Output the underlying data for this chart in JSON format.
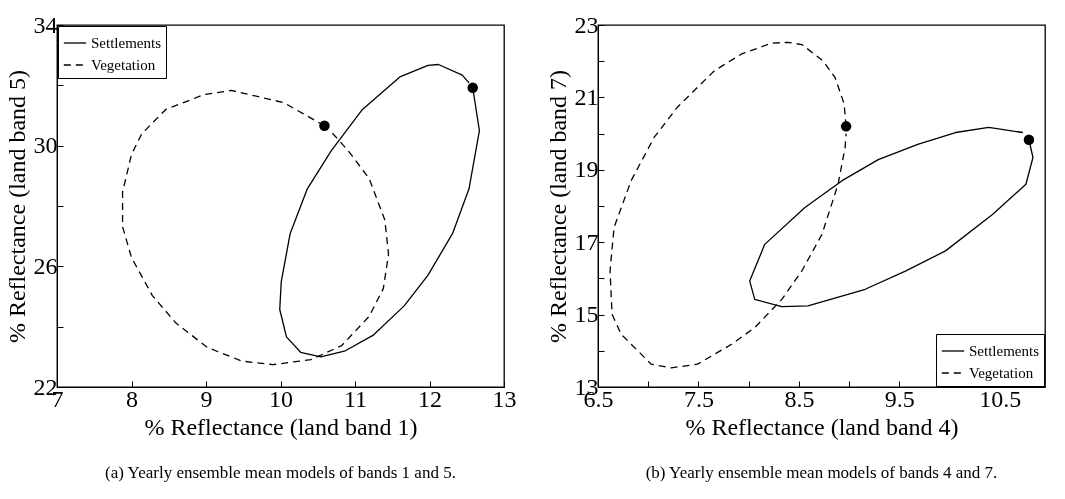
{
  "chart_data": [
    {
      "type": "line",
      "xlabel": "% Reflectance (land band 1)",
      "ylabel": "% Reflectance (land band 5)",
      "xlim": [
        7,
        13
      ],
      "ylim": [
        22,
        34
      ],
      "xticks": [
        7,
        8,
        9,
        10,
        11,
        12,
        13
      ],
      "yticks": [
        22,
        {
          "value": 24,
          "label": null
        },
        26,
        {
          "value": 28,
          "label": null
        },
        30,
        {
          "value": 32,
          "label": null
        },
        34
      ],
      "legend": "top left",
      "annotations": [
        "(a) Yearly ensemble mean models of bands 1 and 5."
      ],
      "series": [
        {
          "name": "Settlements",
          "color": "#000000",
          "line_style": "solid",
          "x": [
            12.58,
            12.67,
            12.53,
            12.31,
            11.98,
            11.66,
            11.24,
            10.87,
            10.54,
            10.27,
            10.08,
            9.99,
            10.01,
            10.13,
            10.36,
            10.68,
            11.1,
            11.61,
            11.98,
            12.12,
            12.44,
            12.53
          ],
          "values": [
            31.92,
            30.5,
            28.57,
            27.09,
            25.71,
            24.69,
            23.71,
            23.2,
            23.0,
            23.15,
            23.66,
            24.57,
            25.49,
            27.09,
            28.57,
            29.83,
            31.2,
            32.29,
            32.66,
            32.69,
            32.34,
            32.08
          ]
        },
        {
          "name": "Vegetation",
          "color": "#000000",
          "line_style": "dashed",
          "x": [
            10.59,
            10.04,
            9.34,
            8.97,
            8.46,
            8.14,
            8.0,
            7.88,
            7.88,
            8.0,
            8.28,
            8.6,
            9.02,
            9.48,
            9.9,
            10.41,
            10.82,
            11.19,
            11.38,
            11.45,
            11.4,
            11.19,
            10.91,
            10.68
          ],
          "values": [
            30.66,
            31.43,
            31.83,
            31.69,
            31.2,
            30.4,
            29.71,
            28.46,
            27.31,
            26.29,
            25.03,
            24.11,
            23.31,
            22.86,
            22.74,
            22.91,
            23.37,
            24.34,
            25.26,
            26.4,
            27.54,
            28.91,
            29.83,
            30.46
          ]
        },
        {
          "type": "scatter",
          "marker": "circle",
          "color": "#000000",
          "x": [
            12.58,
            10.59
          ],
          "values": [
            31.92,
            30.66
          ]
        }
      ]
    },
    {
      "type": "line",
      "xlabel": "% Reflectance (land band 4)",
      "ylabel": "% Reflectance (land band 7)",
      "xlim": [
        6.5,
        10.95
      ],
      "ylim": [
        13,
        23
      ],
      "xticks": [
        6.5,
        {
          "value": 7,
          "label": null
        },
        7.5,
        {
          "value": 8,
          "label": null
        },
        8.5,
        {
          "value": 9,
          "label": null
        },
        9.5,
        {
          "value": 10,
          "label": null
        },
        10.5
      ],
      "yticks": [
        13,
        {
          "value": 14,
          "label": null
        },
        15,
        {
          "value": 16,
          "label": null
        },
        17,
        {
          "value": 18,
          "label": null
        },
        19,
        {
          "value": 20,
          "label": null
        },
        21,
        {
          "value": 22,
          "label": null
        },
        23
      ],
      "legend": "bottom right",
      "annotations": [
        "(b) Yearly ensemble mean models of bands 4 and 7."
      ],
      "series": [
        {
          "name": "Settlements",
          "color": "#000000",
          "line_style": "solid",
          "x": [
            10.79,
            10.83,
            10.76,
            10.43,
            9.96,
            9.56,
            9.16,
            8.59,
            8.33,
            8.06,
            8.01,
            8.16,
            8.56,
            8.93,
            9.29,
            9.69,
            10.06,
            10.39,
            10.73
          ],
          "values": [
            19.83,
            19.34,
            18.6,
            17.77,
            16.76,
            16.2,
            15.7,
            15.24,
            15.22,
            15.42,
            15.93,
            16.94,
            17.96,
            18.7,
            19.28,
            19.71,
            20.03,
            20.17,
            20.03
          ]
        },
        {
          "name": "Vegetation",
          "color": "#000000",
          "line_style": "dashed",
          "x": [
            8.97,
            8.95,
            8.86,
            8.74,
            8.53,
            8.39,
            8.23,
            7.93,
            7.66,
            7.29,
            7.06,
            6.83,
            6.66,
            6.62,
            6.64,
            6.73,
            7.03,
            7.23,
            7.49,
            7.83,
            8.06,
            8.33,
            8.53,
            8.73,
            8.89,
            8.96,
            8.97
          ],
          "values": [
            20.2,
            20.82,
            21.55,
            22.01,
            22.46,
            22.52,
            22.5,
            22.2,
            21.74,
            20.73,
            19.9,
            18.7,
            17.41,
            16.21,
            15.01,
            14.46,
            13.63,
            13.53,
            13.63,
            14.18,
            14.64,
            15.42,
            16.21,
            17.22,
            18.6,
            19.62,
            20.0
          ]
        },
        {
          "type": "scatter",
          "marker": "circle",
          "color": "#000000",
          "x": [
            10.79,
            8.97
          ],
          "values": [
            19.83,
            20.2
          ]
        }
      ]
    }
  ]
}
